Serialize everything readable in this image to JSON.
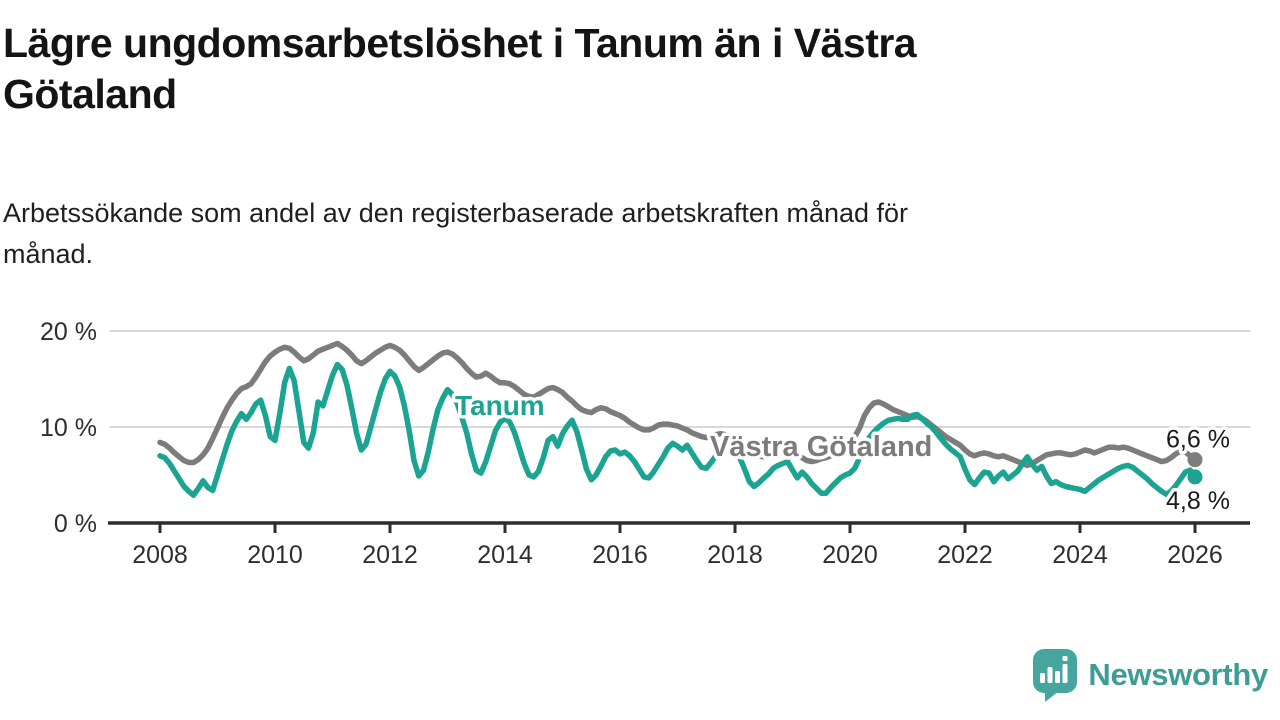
{
  "header": {
    "title_lines": [
      "Lägre ungdomsarbetslöshet i Tanum än i Västra",
      "Götaland"
    ],
    "subtitle_lines": [
      "Arbetssökande som andel av den registerbaserade arbetskraften månad för",
      "månad."
    ]
  },
  "chart_data": {
    "type": "line",
    "unit": "%",
    "x_start": "2008-01",
    "x_end": "2026-01",
    "points_per_year": 12,
    "grid": "horizontal-only",
    "ylim": [
      0,
      21.5
    ],
    "y_ticks": [
      {
        "value": 0,
        "label": "0 %"
      },
      {
        "value": 10,
        "label": "10 %"
      },
      {
        "value": 20,
        "label": "20 %"
      }
    ],
    "x_ticks": [
      {
        "year": 2008,
        "label": "2008"
      },
      {
        "year": 2010,
        "label": "2010"
      },
      {
        "year": 2012,
        "label": "2012"
      },
      {
        "year": 2014,
        "label": "2014"
      },
      {
        "year": 2016,
        "label": "2016"
      },
      {
        "year": 2018,
        "label": "2018"
      },
      {
        "year": 2020,
        "label": "2020"
      },
      {
        "year": 2022,
        "label": "2022"
      },
      {
        "year": 2024,
        "label": "2024"
      },
      {
        "year": 2026,
        "label": "2026"
      }
    ],
    "series": [
      {
        "name": "Västra Götaland",
        "color": "#7c7c7c",
        "end_label": "6,6 %",
        "end_value": 6.6,
        "values": [
          8.4,
          8.2,
          7.8,
          7.3,
          6.9,
          6.5,
          6.3,
          6.3,
          6.6,
          7.1,
          7.8,
          8.8,
          9.9,
          11.0,
          12.0,
          12.8,
          13.5,
          14.0,
          14.2,
          14.5,
          15.2,
          16.0,
          16.8,
          17.4,
          17.8,
          18.1,
          18.3,
          18.2,
          17.8,
          17.3,
          16.9,
          17.1,
          17.5,
          17.9,
          18.1,
          18.3,
          18.5,
          18.7,
          18.4,
          18.0,
          17.5,
          16.9,
          16.6,
          16.9,
          17.3,
          17.7,
          18.0,
          18.3,
          18.5,
          18.3,
          18.0,
          17.5,
          16.9,
          16.3,
          15.9,
          16.2,
          16.6,
          17.0,
          17.4,
          17.7,
          17.8,
          17.6,
          17.2,
          16.7,
          16.1,
          15.6,
          15.2,
          15.3,
          15.6,
          15.3,
          14.9,
          14.6,
          14.6,
          14.5,
          14.2,
          13.8,
          13.4,
          13.2,
          13.1,
          13.4,
          13.7,
          14.0,
          14.1,
          13.9,
          13.6,
          13.1,
          12.7,
          12.2,
          11.8,
          11.6,
          11.5,
          11.8,
          12.0,
          11.9,
          11.6,
          11.4,
          11.2,
          10.9,
          10.5,
          10.2,
          9.9,
          9.7,
          9.7,
          9.9,
          10.2,
          10.3,
          10.3,
          10.2,
          10.1,
          9.9,
          9.7,
          9.4,
          9.2,
          9.0,
          8.9,
          9.0,
          9.2,
          9.3,
          9.2,
          8.9,
          8.4,
          8.1,
          7.8,
          7.5,
          7.2,
          7.0,
          6.9,
          7.0,
          7.2,
          7.4,
          7.5,
          7.6,
          7.4,
          7.1,
          6.8,
          6.5,
          6.4,
          6.5,
          6.7,
          6.8,
          7.0,
          7.3,
          7.7,
          8.1,
          8.6,
          9.0,
          9.9,
          11.2,
          12.0,
          12.5,
          12.6,
          12.4,
          12.1,
          11.8,
          11.6,
          11.4,
          11.2,
          11.0,
          11.1,
          10.9,
          10.6,
          10.2,
          9.8,
          9.4,
          9.0,
          8.7,
          8.4,
          8.1,
          7.6,
          7.2,
          7.0,
          7.2,
          7.3,
          7.2,
          7.0,
          6.9,
          7.0,
          6.8,
          6.6,
          6.4,
          6.2,
          6.0,
          6.2,
          6.5,
          6.8,
          7.1,
          7.2,
          7.3,
          7.3,
          7.2,
          7.1,
          7.2,
          7.4,
          7.6,
          7.5,
          7.3,
          7.5,
          7.7,
          7.9,
          7.9,
          7.8,
          7.9,
          7.8,
          7.6,
          7.4,
          7.2,
          7.0,
          6.8,
          6.6,
          6.4,
          6.5,
          6.8,
          7.2,
          7.5,
          7.4,
          7.0,
          6.6
        ]
      },
      {
        "name": "Tanum",
        "color": "#1aa491",
        "end_label": "4,8 %",
        "end_value": 4.8,
        "values": [
          7.0,
          6.8,
          6.2,
          5.4,
          4.6,
          3.8,
          3.3,
          2.9,
          3.6,
          4.4,
          3.7,
          3.4,
          5.0,
          6.6,
          8.2,
          9.6,
          10.6,
          11.4,
          10.8,
          11.5,
          12.4,
          12.8,
          11.2,
          9.0,
          8.6,
          11.4,
          14.6,
          16.1,
          14.8,
          11.6,
          8.4,
          7.8,
          9.4,
          12.6,
          12.2,
          13.8,
          15.4,
          16.5,
          16.0,
          14.4,
          12.0,
          9.4,
          7.6,
          8.2,
          10.0,
          11.8,
          13.6,
          15.0,
          15.8,
          15.3,
          14.2,
          12.2,
          9.6,
          6.5,
          4.9,
          5.5,
          7.4,
          9.8,
          11.8,
          13.0,
          13.9,
          13.4,
          12.5,
          11.0,
          9.4,
          7.2,
          5.5,
          5.2,
          6.4,
          8.0,
          9.6,
          10.5,
          10.9,
          10.5,
          9.4,
          7.8,
          6.2,
          5.0,
          4.8,
          5.4,
          6.8,
          8.6,
          9.0,
          8.0,
          9.3,
          10.1,
          10.7,
          9.5,
          7.6,
          5.6,
          4.5,
          5.0,
          5.9,
          6.9,
          7.5,
          7.6,
          7.2,
          7.4,
          7.0,
          6.4,
          5.6,
          4.8,
          4.7,
          5.3,
          6.1,
          6.9,
          7.8,
          8.3,
          8.0,
          7.6,
          8.1,
          7.3,
          6.5,
          5.8,
          5.7,
          6.3,
          7.0,
          7.7,
          8.2,
          8.6,
          7.9,
          6.8,
          5.6,
          4.3,
          3.8,
          4.2,
          4.7,
          5.1,
          5.7,
          6.0,
          6.2,
          6.4,
          5.5,
          4.7,
          5.3,
          4.8,
          4.1,
          3.6,
          3.1,
          3.1,
          3.7,
          4.2,
          4.7,
          5.0,
          5.2,
          5.7,
          6.8,
          8.0,
          8.9,
          9.5,
          10.0,
          10.4,
          10.7,
          10.8,
          10.9,
          10.8,
          10.8,
          11.2,
          11.3,
          10.9,
          10.4,
          10.0,
          9.4,
          8.8,
          8.2,
          7.7,
          7.3,
          6.9,
          5.6,
          4.5,
          4.0,
          4.7,
          5.3,
          5.2,
          4.3,
          4.9,
          5.3,
          4.6,
          5.0,
          5.4,
          6.2,
          6.9,
          6.1,
          5.5,
          5.9,
          4.9,
          4.1,
          4.3,
          4.0,
          3.8,
          3.7,
          3.6,
          3.5,
          3.3,
          3.7,
          4.1,
          4.5,
          4.8,
          5.1,
          5.4,
          5.7,
          5.9,
          6.0,
          5.8,
          5.4,
          5.0,
          4.6,
          4.1,
          3.7,
          3.3,
          3.0,
          3.3,
          3.9,
          4.6,
          5.3,
          5.5,
          4.8
        ]
      }
    ],
    "colors": {
      "axis": "#2d2d2d",
      "gridline": "#d8d8d8",
      "tick_label": "#2e2e2e",
      "end_label": "#1a1a1a"
    }
  },
  "footer": {
    "brand": "Newsworthy",
    "brand_color": "#3d9d95",
    "logo_icon": "bar-chart-speech-bubble-icon"
  }
}
